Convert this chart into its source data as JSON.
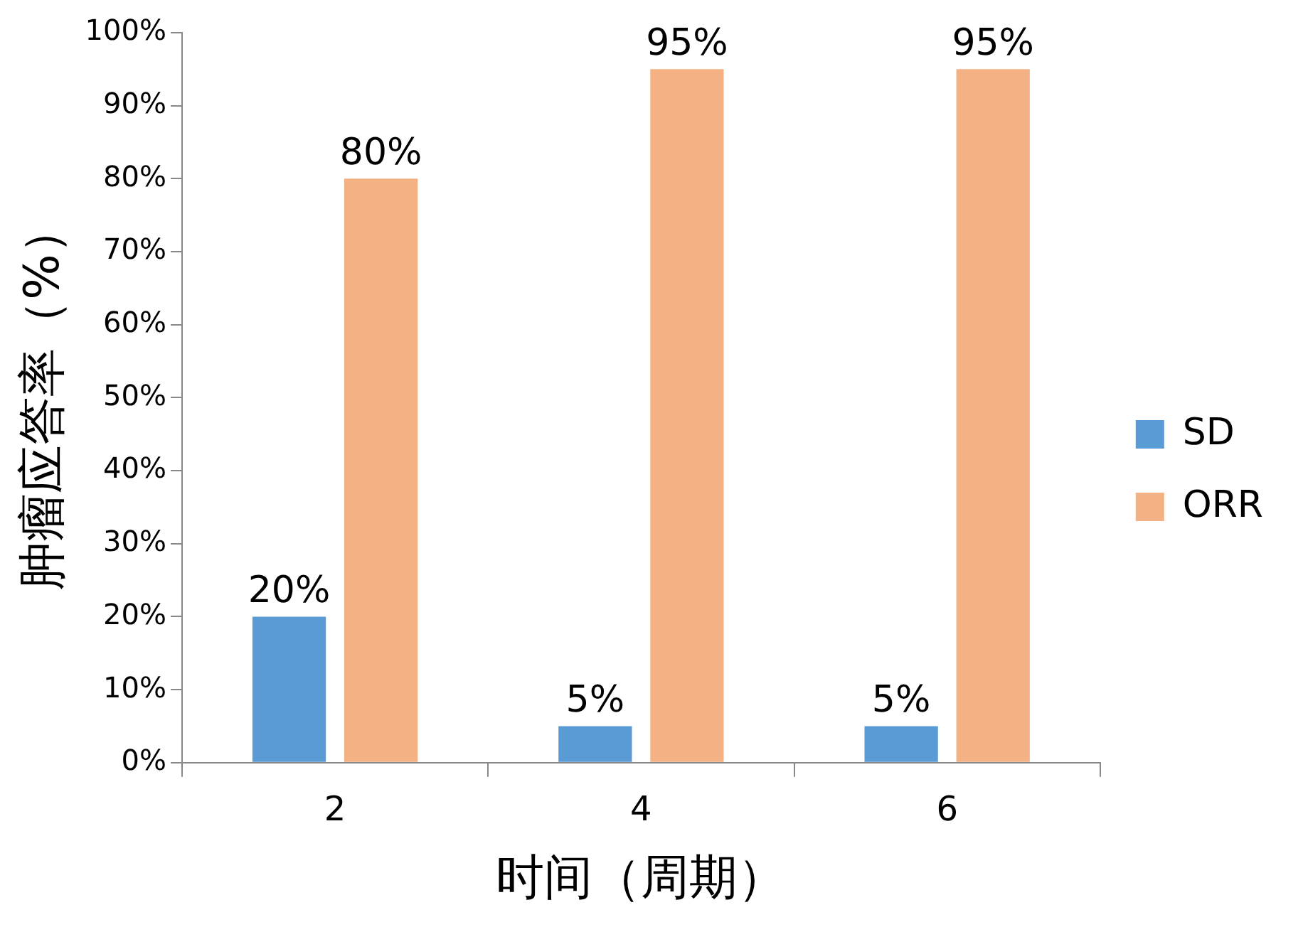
{
  "chart_data": {
    "type": "bar",
    "xlabel": "时间（周期）",
    "ylabel": "肿瘤应答率（%）",
    "categories": [
      "2",
      "4",
      "6"
    ],
    "series": [
      {
        "name": "SD",
        "color": "#5b9bd5",
        "values": [
          20,
          5,
          5
        ],
        "value_labels": [
          "20%",
          "5%",
          "5%"
        ]
      },
      {
        "name": "ORR",
        "color": "#f4b183",
        "values": [
          80,
          95,
          95
        ],
        "value_labels": [
          "80%",
          "95%",
          "95%"
        ]
      }
    ],
    "ylim": [
      0,
      100
    ],
    "yticks": [
      {
        "value": 0,
        "label": "0%"
      },
      {
        "value": 10,
        "label": "10%"
      },
      {
        "value": 20,
        "label": "20%"
      },
      {
        "value": 30,
        "label": "30%"
      },
      {
        "value": 40,
        "label": "40%"
      },
      {
        "value": 50,
        "label": "50%"
      },
      {
        "value": 60,
        "label": "60%"
      },
      {
        "value": 70,
        "label": "70%"
      },
      {
        "value": 80,
        "label": "80%"
      },
      {
        "value": 90,
        "label": "90%"
      },
      {
        "value": 100,
        "label": "100%"
      }
    ],
    "grid": false,
    "legend": "right"
  }
}
